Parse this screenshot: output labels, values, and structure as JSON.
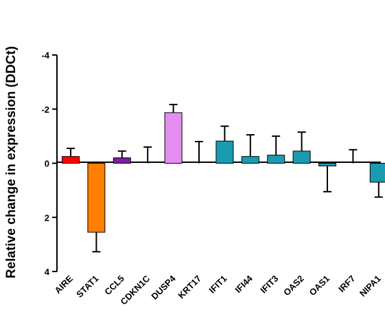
{
  "chart_data": {
    "type": "bar",
    "title": "",
    "xlabel": "",
    "ylabel": "Relative change in expression (DDCt)",
    "ylim": [
      -4,
      4
    ],
    "y_inverted": true,
    "y_ticks": [
      "-4",
      "-2",
      "0",
      "2",
      "4"
    ],
    "grid": false,
    "legend": "none",
    "categories": [
      "AIRE",
      "STAT1",
      "CCL5",
      "CDKN1C",
      "DUSP4",
      "KRT17",
      "IFIT1",
      "IFI44",
      "IFIT3",
      "OAS2",
      "OAS1",
      "IRF7",
      "NIPA1"
    ],
    "values": [
      -0.25,
      2.55,
      -0.2,
      0.0,
      -1.87,
      0.0,
      -0.82,
      -0.25,
      -0.3,
      -0.45,
      0.1,
      0.0,
      0.7
    ],
    "error_bars": [
      0.3,
      0.72,
      0.25,
      0.6,
      0.3,
      0.8,
      0.55,
      0.8,
      0.7,
      0.7,
      0.95,
      0.5,
      0.55
    ],
    "colors": [
      "#ff0000",
      "#ff8000",
      "#7b1fa2",
      "#cccccc",
      "#e58ef0",
      "#cccccc",
      "#1a9bb0",
      "#1a9bb0",
      "#1a9bb0",
      "#1a9bb0",
      "#1a9bb0",
      "#1a9bb0",
      "#1a9bb0"
    ]
  }
}
